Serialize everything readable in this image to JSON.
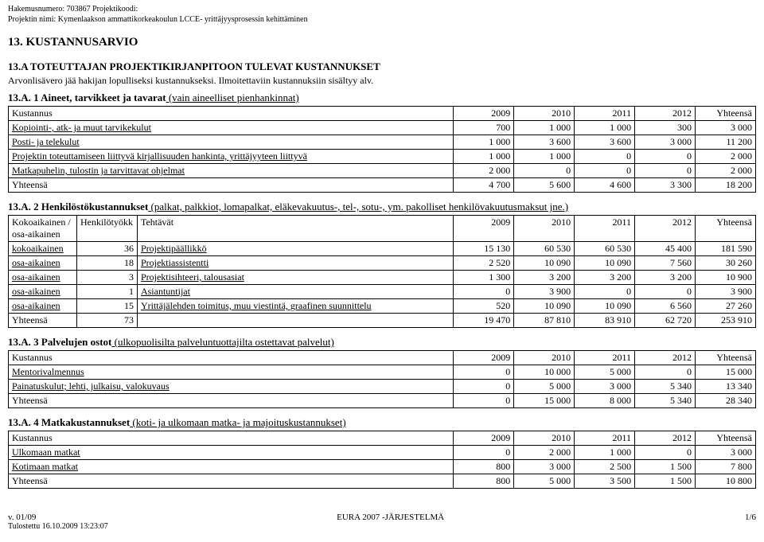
{
  "meta": {
    "appnum_label": "Hakemusnumero: 703867 Projektikoodi:",
    "project_label": "Projektin nimi: Kymenlaakson ammattikorkeakoulun LCCE- yrittäjyysprosessin kehittäminen"
  },
  "title_main": "13. KUSTANNUSARVIO",
  "section_a_head": {
    "title": "13.A TOTEUTTAJAN PROJEKTIKIRJANPITOON TULEVAT KUSTANNUKSET",
    "sub": "Arvonlisävero jää hakijan lopulliseksi kustannukseksi. Ilmoitettaviin kustannuksiin sisältyy alv."
  },
  "s13a1": {
    "label_bold": "13.A. 1 Aineet, tarvikkeet ja tavarat",
    "label_under": "  (vain aineelliset pienhankinnat)",
    "cols": [
      "Kustannus",
      "2009",
      "2010",
      "2011",
      "2012",
      "Yhteensä"
    ],
    "rows": [
      {
        "label": "Kopiointi-, atk- ja muut tarvikekulut",
        "v": [
          "700",
          "1 000",
          "1 000",
          "300",
          "3 000"
        ]
      },
      {
        "label": "Posti- ja telekulut",
        "v": [
          "1 000",
          "3 600",
          "3 600",
          "3 000",
          "11 200"
        ]
      },
      {
        "label": "Projektin toteuttamiseen liittyvä kirjallisuuden hankinta, yrittäjyyteen liittyvä",
        "v": [
          "1 000",
          "1 000",
          "0",
          "0",
          "2 000"
        ]
      },
      {
        "label": "Matkapuhelin, tulostin ja tarvittavat ohjelmat",
        "v": [
          "2 000",
          "0",
          "0",
          "0",
          "2 000"
        ]
      }
    ],
    "total": {
      "label": "Yhteensä",
      "v": [
        "4 700",
        "5 600",
        "4 600",
        "3 300",
        "18 200"
      ]
    }
  },
  "s13a2": {
    "label_bold": "13.A. 2 Henkilöstökustannukset",
    "label_under": " (palkat, palkkiot, lomapalkat, eläkevakuutus-, tel-, sotu-, ym. pakolliset henkilövakuutusmaksut jne.)",
    "cols": [
      "Kokoaikainen / osa-aikainen",
      "Henkilötyökk",
      "Tehtävät",
      "2009",
      "2010",
      "2011",
      "2012",
      "Yhteensä"
    ],
    "rows": [
      {
        "c": [
          "kokoaikainen",
          "36",
          "Projektipäällikkö",
          "15 130",
          "60 530",
          "60 530",
          "45 400",
          "181 590"
        ]
      },
      {
        "c": [
          "osa-aikainen",
          "18",
          "Projektiassistentti",
          "2 520",
          "10 090",
          "10 090",
          "7 560",
          "30 260"
        ]
      },
      {
        "c": [
          "osa-aikainen",
          "3",
          "Projektisihteeri, talousasiat",
          "1 300",
          "3 200",
          "3 200",
          "3 200",
          "10 900"
        ]
      },
      {
        "c": [
          "osa-aikainen",
          "1",
          "Asiantuntijat",
          "0",
          "3 900",
          "0",
          "0",
          "3 900"
        ]
      },
      {
        "c": [
          "osa-aikainen",
          "15",
          "Yrittäjälehden toimitus, muu viestintä, graafinen suunnittelu",
          "520",
          "10 090",
          "10 090",
          "6 560",
          "27 260"
        ]
      }
    ],
    "total": {
      "c": [
        "Yhteensä",
        "73",
        "",
        "19 470",
        "87 810",
        "83 910",
        "62 720",
        "253 910"
      ]
    }
  },
  "s13a3": {
    "label_bold": "13.A. 3 Palvelujen ostot",
    "label_under": " (ulkopuolisilta palveluntuottajilta ostettavat palvelut)",
    "cols": [
      "Kustannus",
      "2009",
      "2010",
      "2011",
      "2012",
      "Yhteensä"
    ],
    "rows": [
      {
        "label": "Mentorivalmennus",
        "v": [
          "0",
          "10 000",
          "5 000",
          "0",
          "15 000"
        ]
      },
      {
        "label": "Painatuskulut; lehti, julkaisu, valokuvaus",
        "v": [
          "0",
          "5 000",
          "3 000",
          "5 340",
          "13 340"
        ]
      }
    ],
    "total": {
      "label": "Yhteensä",
      "v": [
        "0",
        "15 000",
        "8 000",
        "5 340",
        "28 340"
      ]
    }
  },
  "s13a4": {
    "label_bold": "13.A. 4 Matkakustannukset",
    "label_under": " (koti- ja ulkomaan matka- ja majoituskustannukset)",
    "cols": [
      "Kustannus",
      "2009",
      "2010",
      "2011",
      "2012",
      "Yhteensä"
    ],
    "rows": [
      {
        "label": "Ulkomaan matkat",
        "v": [
          "0",
          "2 000",
          "1 000",
          "0",
          "3 000"
        ]
      },
      {
        "label": "Kotimaan matkat",
        "v": [
          "800",
          "3 000",
          "2 500",
          "1 500",
          "7 800"
        ]
      }
    ],
    "total": {
      "label": "Yhteensä",
      "v": [
        "800",
        "5 000",
        "3 500",
        "1 500",
        "10 800"
      ]
    }
  },
  "footer": {
    "left_top": "v. 01/09",
    "center": "EURA 2007 -JÄRJESTELMÄ",
    "right": "1/6",
    "left_bottom": "Tulostettu 16.10.2009 13:23:07"
  },
  "layout": {
    "col_label_w": 560,
    "col_num_w": 76,
    "a2_c0_w": 86,
    "a2_c1_w": 76,
    "a2_c2_w": 398
  }
}
